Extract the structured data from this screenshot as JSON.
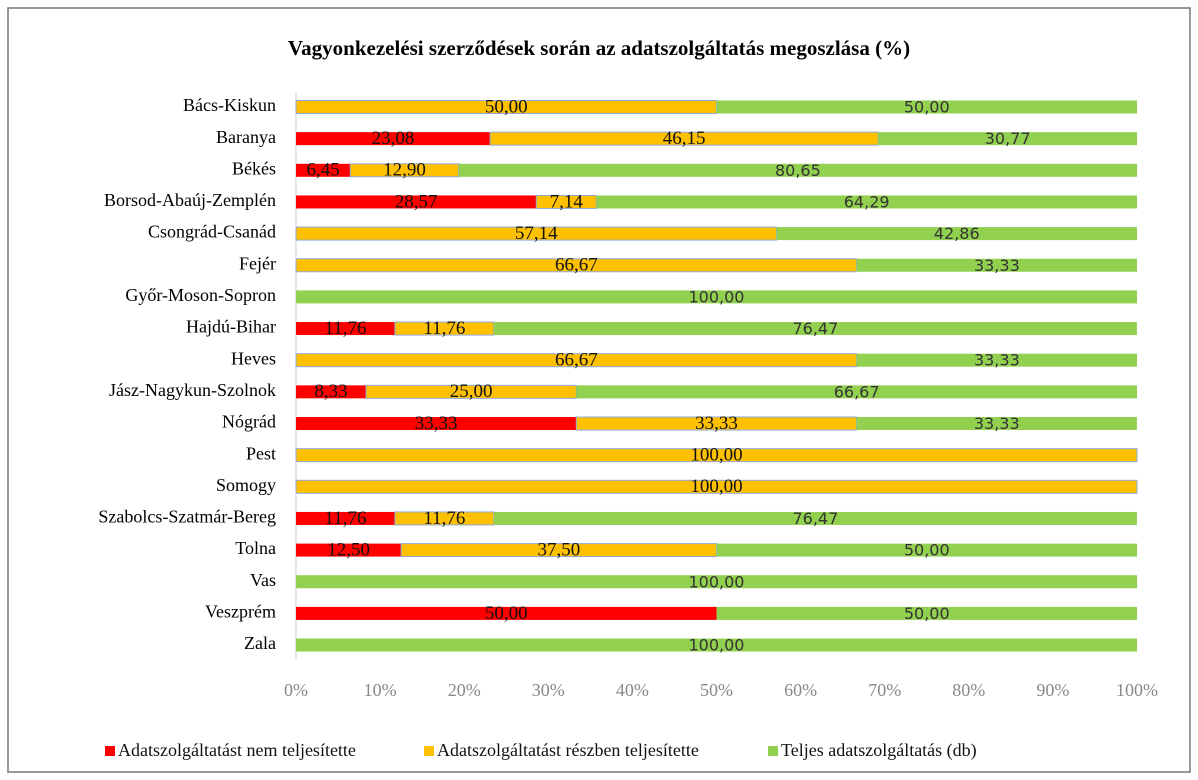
{
  "chart_data": {
    "type": "stacked-bar-horizontal",
    "title": "Vagyonkezelési szerződések során az adatszolgáltatás megoszlása (%)",
    "categories": [
      "Bács-Kiskun",
      "Baranya",
      "Békés",
      "Borsod-Abaúj-Zemplén",
      "Csongrád-Csanád",
      "Fejér",
      "Győr-Moson-Sopron",
      "Hajdú-Bihar",
      "Heves",
      "Jász-Nagykun-Szolnok",
      "Nógrád",
      "Pest",
      "Somogy",
      "Szabolcs-Szatmár-Bereg",
      "Tolna",
      "Vas",
      "Veszprém",
      "Zala"
    ],
    "series": [
      {
        "name": "Adatszolgáltatást nem teljesítette",
        "color": "#ff0000",
        "values": [
          0,
          23.08,
          6.45,
          28.57,
          0,
          0,
          0,
          11.76,
          0,
          8.33,
          33.33,
          0,
          0,
          11.76,
          12.5,
          0,
          50,
          0
        ],
        "value_labels": [
          null,
          "23,08",
          "6,45",
          "28,57",
          null,
          null,
          null,
          "11,76",
          null,
          "8,33",
          "33,33",
          null,
          null,
          "11,76",
          "12,50",
          null,
          "50,00",
          null
        ]
      },
      {
        "name": "Adatszolgáltatást részben teljesítette",
        "color": "#ffc000",
        "values": [
          50,
          46.15,
          12.9,
          7.14,
          57.14,
          66.67,
          0,
          11.76,
          66.67,
          25,
          33.33,
          100,
          100,
          11.76,
          37.5,
          0,
          0,
          0
        ],
        "value_labels": [
          "50,00",
          "46,15",
          "12,90",
          "7,14",
          "57,14",
          "66,67",
          null,
          "11,76",
          "66,67",
          "25,00",
          "33,33",
          "100,00",
          "100,00",
          "11,76",
          "37,50",
          null,
          null,
          null
        ]
      },
      {
        "name": "Teljes adatszolgáltatás (db)",
        "color": "#92d050",
        "values": [
          50,
          30.77,
          80.65,
          64.29,
          42.86,
          33.33,
          100,
          76.47,
          33.33,
          66.67,
          33.33,
          0,
          0,
          76.47,
          50,
          100,
          50,
          100
        ],
        "value_labels": [
          "50,00",
          "30,77",
          "80,65",
          "64,29",
          "42,86",
          "33,33",
          "100,00",
          "76,47",
          "33,33",
          "66,67",
          "33,33",
          null,
          null,
          "76,47",
          "50,00",
          "100,00",
          "50,00",
          "100,00"
        ]
      }
    ],
    "xlim": [
      0,
      100
    ],
    "xticks": [
      {
        "value": 0,
        "label": "0%"
      },
      {
        "value": 10,
        "label": "10%"
      },
      {
        "value": 20,
        "label": "20%"
      },
      {
        "value": 30,
        "label": "30%"
      },
      {
        "value": 40,
        "label": "40%"
      },
      {
        "value": 50,
        "label": "50%"
      },
      {
        "value": 60,
        "label": "60%"
      },
      {
        "value": 70,
        "label": "70%"
      },
      {
        "value": 80,
        "label": "80%"
      },
      {
        "value": 90,
        "label": "90%"
      },
      {
        "value": 100,
        "label": "100%"
      }
    ],
    "grid": false,
    "legend": "bottom"
  }
}
